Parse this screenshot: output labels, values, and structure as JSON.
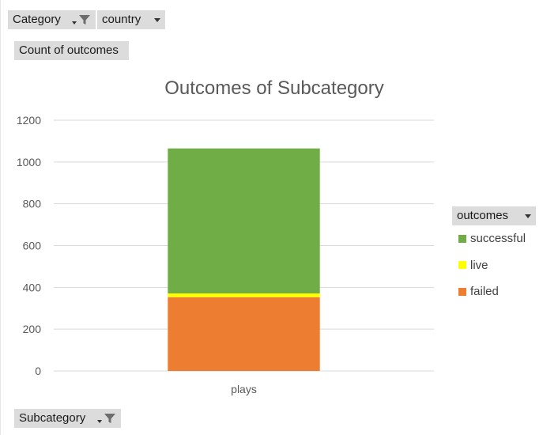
{
  "filters": {
    "category_label": "Category",
    "country_label": "country",
    "values_label": "Count of outcomes",
    "axis_field_label": "Subcategory",
    "legend_field_label": "outcomes"
  },
  "chart_data": {
    "type": "bar",
    "stacked": true,
    "title": "Outcomes of Subcategory",
    "categories": [
      "plays"
    ],
    "series": [
      {
        "name": "failed",
        "values": [
          353
        ],
        "color": "#ED7D31"
      },
      {
        "name": "live",
        "values": [
          18
        ],
        "color": "#FFFF00"
      },
      {
        "name": "successful",
        "values": [
          694
        ],
        "color": "#70AD47"
      }
    ],
    "ylim": [
      0,
      1200
    ],
    "yticks": [
      0,
      200,
      400,
      600,
      800,
      1000,
      1200
    ],
    "grid": true,
    "legend": [
      "successful",
      "live",
      "failed"
    ],
    "legend_placement": "right"
  }
}
